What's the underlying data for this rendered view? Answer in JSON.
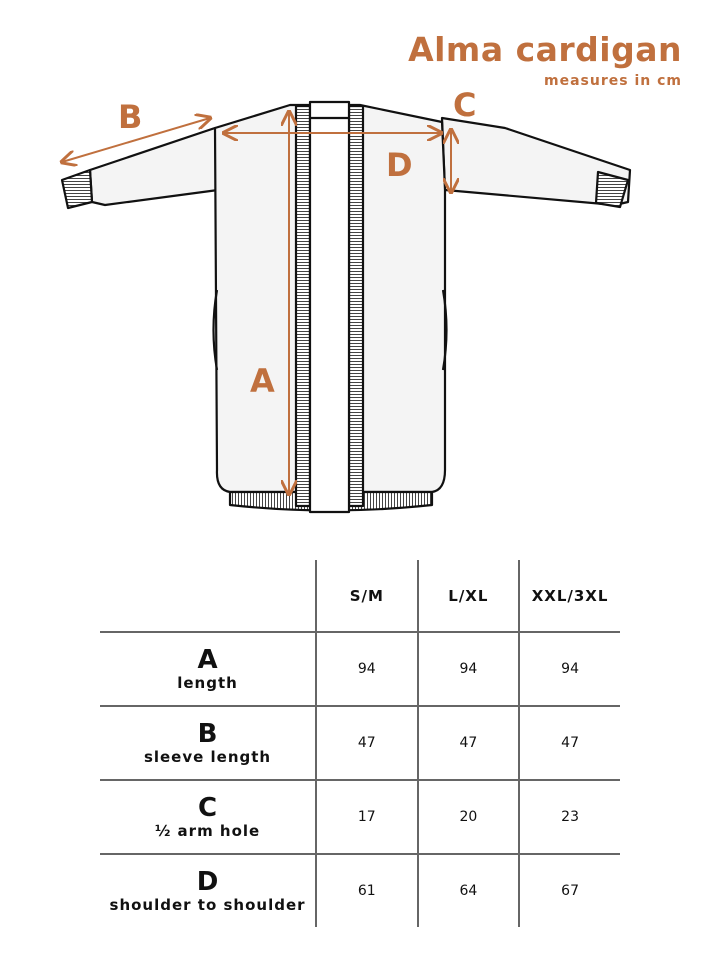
{
  "header": {
    "title": "Alma cardigan",
    "subtitle": "measures in cm"
  },
  "diagram": {
    "labels": [
      "A",
      "B",
      "C",
      "D"
    ],
    "accent_color": "#c0703e"
  },
  "table": {
    "columns": [
      "S/M",
      "L/XL",
      "XXL/3XL"
    ],
    "rows": [
      {
        "letter": "A",
        "name": "length",
        "values": [
          "94",
          "94",
          "94"
        ]
      },
      {
        "letter": "B",
        "name": "sleeve length",
        "values": [
          "47",
          "47",
          "47"
        ]
      },
      {
        "letter": "C",
        "name": "½ arm hole",
        "values": [
          "17",
          "20",
          "23"
        ]
      },
      {
        "letter": "D",
        "name": "shoulder to shoulder",
        "values": [
          "61",
          "64",
          "67"
        ]
      }
    ]
  }
}
